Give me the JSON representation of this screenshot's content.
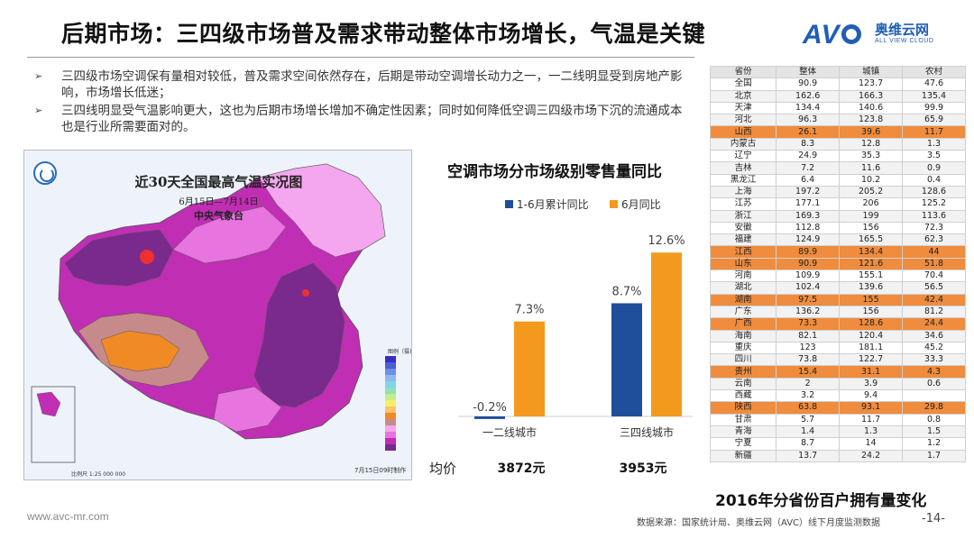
{
  "header": {
    "title": "后期市场：三四级市场普及需求带动整体市场增长，气温是关键",
    "logo_mark": "AVC",
    "logo_cn": "奥维云网",
    "logo_en": "ALL VIEW CLOUD"
  },
  "bullets": [
    "三四级市场空调保有量相对较低，普及需求空间依然存在，后期是带动空调增长动力之一，一二线明显受到房地产影响，市场增长低迷；",
    "三四线明显受气温影响更大，这也为后期市场增长增加不确定性因素；同时如何降低空调三四级市场下沉的流通成本也是行业所需要面对的。"
  ],
  "map": {
    "title": "近30天全国最高气温实况图",
    "date_range": "6月15日—7月14日",
    "org": "中央气象台",
    "legend_title": "图例（摄氏度）",
    "made": "7月15日09时制作",
    "scale": "比例尺 1:25 000 000",
    "colors": [
      "#7a2a8c",
      "#c02eb4",
      "#e874e0",
      "#f4a6ee",
      "#c78a8a",
      "#f08a24",
      "#f9c46a",
      "#ee3030"
    ]
  },
  "chart_data": {
    "type": "bar",
    "title": "空调市场分市场级别零售量同比",
    "categories": [
      "一二线城市",
      "三四线城市"
    ],
    "series": [
      {
        "name": "1-6月累计同比",
        "color": "#1f4e9a",
        "values": [
          -0.2,
          8.7
        ],
        "labels": [
          "-0.2%",
          "8.7%"
        ]
      },
      {
        "name": "6月同比",
        "color": "#f39a1e",
        "values": [
          7.3,
          12.6
        ],
        "labels": [
          "7.3%",
          "12.6%"
        ]
      }
    ],
    "ylim": [
      -1,
      14
    ],
    "legend_position": "top",
    "grid": false
  },
  "prices": {
    "label": "均价",
    "values": [
      "3872元",
      "3953元"
    ]
  },
  "table": {
    "headers": [
      "省份",
      "整体",
      "城镇",
      "农村"
    ],
    "caption": "2016年分省份百户拥有量变化",
    "rows": [
      {
        "cells": [
          "全国",
          "90.9",
          "123.7",
          "47.6"
        ],
        "hl": false
      },
      {
        "cells": [
          "北京",
          "162.6",
          "166.3",
          "135.4"
        ],
        "hl": false
      },
      {
        "cells": [
          "天津",
          "134.4",
          "140.6",
          "99.9"
        ],
        "hl": false
      },
      {
        "cells": [
          "河北",
          "96.3",
          "123.8",
          "65.9"
        ],
        "hl": false
      },
      {
        "cells": [
          "山西",
          "26.1",
          "39.6",
          "11.7"
        ],
        "hl": true
      },
      {
        "cells": [
          "内蒙古",
          "8.3",
          "12.8",
          "1.3"
        ],
        "hl": false
      },
      {
        "cells": [
          "辽宁",
          "24.9",
          "35.3",
          "3.5"
        ],
        "hl": false
      },
      {
        "cells": [
          "吉林",
          "7.2",
          "11.6",
          "0.9"
        ],
        "hl": false
      },
      {
        "cells": [
          "黑龙江",
          "6.4",
          "10.2",
          "0.4"
        ],
        "hl": false
      },
      {
        "cells": [
          "上海",
          "197.2",
          "205.2",
          "128.6"
        ],
        "hl": false
      },
      {
        "cells": [
          "江苏",
          "177.1",
          "206",
          "125.2"
        ],
        "hl": false
      },
      {
        "cells": [
          "浙江",
          "169.3",
          "199",
          "113.6"
        ],
        "hl": false
      },
      {
        "cells": [
          "安徽",
          "112.8",
          "156",
          "72.3"
        ],
        "hl": false
      },
      {
        "cells": [
          "福建",
          "124.9",
          "165.5",
          "62.3"
        ],
        "hl": false
      },
      {
        "cells": [
          "江西",
          "89.9",
          "134.4",
          "44"
        ],
        "hl": true
      },
      {
        "cells": [
          "山东",
          "90.9",
          "121.6",
          "51.8"
        ],
        "hl": true
      },
      {
        "cells": [
          "河南",
          "109.9",
          "155.1",
          "70.4"
        ],
        "hl": false
      },
      {
        "cells": [
          "湖北",
          "102.4",
          "139.6",
          "56.5"
        ],
        "hl": false
      },
      {
        "cells": [
          "湖南",
          "97.5",
          "155",
          "42.4"
        ],
        "hl": true
      },
      {
        "cells": [
          "广东",
          "136.2",
          "156",
          "81.2"
        ],
        "hl": false
      },
      {
        "cells": [
          "广西",
          "73.3",
          "128.6",
          "24.4"
        ],
        "hl": true
      },
      {
        "cells": [
          "海南",
          "82.1",
          "120.4",
          "34.6"
        ],
        "hl": false
      },
      {
        "cells": [
          "重庆",
          "123",
          "181.1",
          "45.2"
        ],
        "hl": false
      },
      {
        "cells": [
          "四川",
          "73.8",
          "122.7",
          "33.3"
        ],
        "hl": false
      },
      {
        "cells": [
          "贵州",
          "15.4",
          "31.1",
          "4.3"
        ],
        "hl": true
      },
      {
        "cells": [
          "云南",
          "2",
          "3.9",
          "0.6"
        ],
        "hl": false
      },
      {
        "cells": [
          "西藏",
          "3.2",
          "9.4",
          ""
        ],
        "hl": false
      },
      {
        "cells": [
          "陕西",
          "63.8",
          "93.1",
          "29.8"
        ],
        "hl": true
      },
      {
        "cells": [
          "甘肃",
          "5.7",
          "11.7",
          "0.8"
        ],
        "hl": false
      },
      {
        "cells": [
          "青海",
          "1.4",
          "1.3",
          "1.5"
        ],
        "hl": false
      },
      {
        "cells": [
          "宁夏",
          "8.7",
          "14",
          "1.2"
        ],
        "hl": false
      },
      {
        "cells": [
          "新疆",
          "13.7",
          "24.2",
          "1.7"
        ],
        "hl": false
      }
    ]
  },
  "footer": {
    "url": "www.avc-mr.com",
    "source": "数据来源：国家统计局、奥维云网（AVC）线下月度监测数据",
    "page": "-14-"
  }
}
